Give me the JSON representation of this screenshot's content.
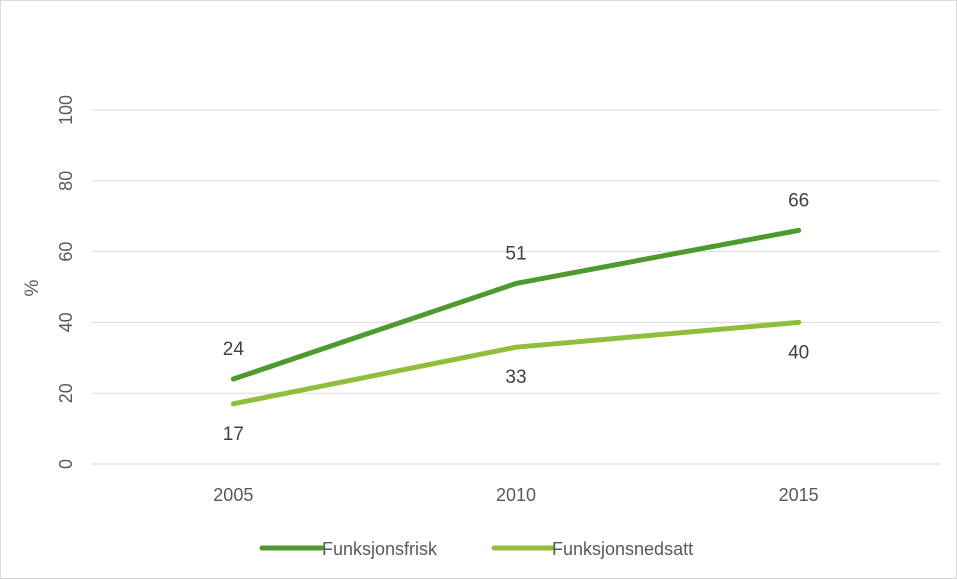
{
  "chart_data": {
    "type": "line",
    "title": "",
    "xlabel": "",
    "ylabel": "%",
    "categories": [
      "2005",
      "2010",
      "2015"
    ],
    "ylim": [
      0,
      100
    ],
    "yticks": [
      0,
      20,
      40,
      60,
      80,
      100
    ],
    "grid": true,
    "legend_position": "bottom",
    "series": [
      {
        "name": "Funksjonsfrisk",
        "values": [
          24,
          51,
          66
        ],
        "color": "#4f9a2f",
        "label_side": "above"
      },
      {
        "name": "Funksjonsnedsatt",
        "values": [
          17,
          33,
          40
        ],
        "color": "#8fbe3a",
        "label_side": "below"
      }
    ]
  }
}
